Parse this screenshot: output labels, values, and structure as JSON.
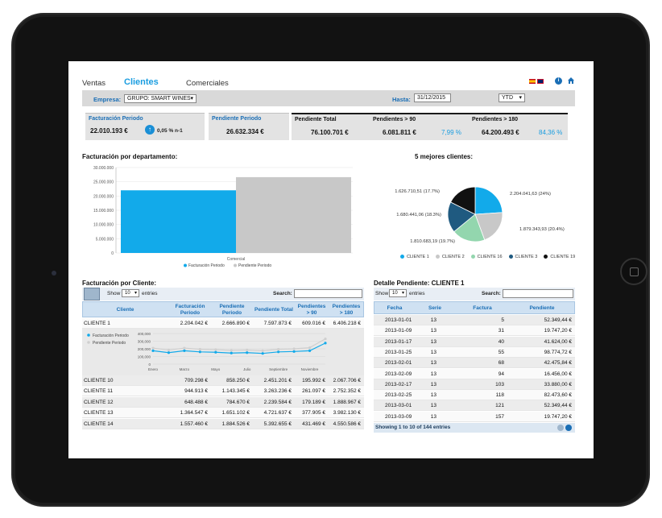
{
  "nav": {
    "ventas": "Ventas",
    "clientes": "Clientes",
    "comerciales": "Comerciales"
  },
  "filters": {
    "empresa_label": "Empresa:",
    "empresa_value": "GRUPO: SMART WINES",
    "hasta_label": "Hasta:",
    "hasta_value": "31/12/2015",
    "period_value": "YTD"
  },
  "kpis": {
    "facturacion": {
      "title": "Facturación Periodo",
      "value": "22.010.193 €",
      "change": "0,05 % n-1"
    },
    "pendiente": {
      "title": "Pendiente Periodo",
      "value": "26.632.334 €"
    },
    "pend_total": {
      "title": "Pendiente Total",
      "value": "76.100.701 €"
    },
    "pend_90": {
      "title": "Pendientes > 90",
      "value": "6.081.811 €",
      "pct": "7,99 %"
    },
    "pend_180": {
      "title": "Pendientes > 180",
      "value": "64.200.493 €",
      "pct": "84,36 %"
    }
  },
  "colors": {
    "accent": "#1a9de0",
    "bar1": "#12aaea",
    "bar2": "#c8c8c8",
    "label_blue": "#1a6eb5"
  },
  "bar_chart": {
    "title": "Facturación por departamento:",
    "chart_data": {
      "type": "bar",
      "categories": [
        "Comercial"
      ],
      "series": [
        {
          "name": "Facturación Periodo",
          "values": [
            22010193
          ]
        },
        {
          "name": "Pendiente Periodo",
          "values": [
            26632334
          ]
        }
      ],
      "ylim": [
        0,
        30000000
      ],
      "yticks": [
        "30.000.000",
        "25.000.000",
        "20.000.000",
        "15.000.000",
        "10.000.000",
        "5.000.000",
        "0"
      ],
      "legend": "bottom"
    }
  },
  "pie_chart": {
    "title": "5 mejores clientes:",
    "chart_data": {
      "type": "pie",
      "slices": [
        {
          "name": "CLIENTE 1",
          "value": 2204041.63,
          "label": "2.204.041,63 (24%)",
          "color": "#12aaea"
        },
        {
          "name": "CLIENTE 2",
          "value": 1879343.93,
          "label": "1.879.343,93 (20.4%)",
          "color": "#c8c8c8"
        },
        {
          "name": "CLIENTE 16",
          "value": 1810683.19,
          "label": "1.810.683,19 (19.7%)",
          "color": "#93d6ae"
        },
        {
          "name": "CLIENTE 3",
          "value": 1680441.06,
          "label": "1.680.441,06 (18.3%)",
          "color": "#1f5a80"
        },
        {
          "name": "CLIENTE 19",
          "value": 1626710.51,
          "label": "1.626.710,51 (17.7%)",
          "color": "#111111"
        }
      ],
      "legend": "bottom"
    }
  },
  "clients_table": {
    "title": "Facturación por Cliente:",
    "show_label": "Show",
    "entries_value": "10",
    "entries_label": "entries",
    "search_label": "Search:",
    "headers": [
      "Cliente",
      "Facturación Periodo",
      "Pendiente Periodo",
      "Pendiente Total",
      "Pendientes > 90",
      "Pendientes > 180"
    ],
    "first_row": [
      "CLIENTE 1",
      "2.204.042 €",
      "2.666.890 €",
      "7.597.873 €",
      "609.016 €",
      "6.406.218 €"
    ],
    "rows": [
      [
        "CLIENTE 10",
        "709.298 €",
        "858.250 €",
        "2.451.201 €",
        "195.992 €",
        "2.067.706 €"
      ],
      [
        "CLIENTE 11",
        "944.913 €",
        "1.143.345 €",
        "3.263.236 €",
        "261.097 €",
        "2.752.352 €"
      ],
      [
        "CLIENTE 12",
        "648.488 €",
        "784.670 €",
        "2.239.584 €",
        "179.189 €",
        "1.888.967 €"
      ],
      [
        "CLIENTE 13",
        "1.364.547 €",
        "1.651.102 €",
        "4.721.637 €",
        "377.905 €",
        "3.982.130 €"
      ],
      [
        "CLIENTE 14",
        "1.557.460 €",
        "1.884.526 €",
        "5.392.655 €",
        "431.469 €",
        "4.550.586 €"
      ]
    ]
  },
  "line_chart": {
    "chart_data": {
      "type": "line",
      "x": [
        "Enero",
        "",
        "Marzo",
        "",
        "Mayo",
        "",
        "Julio",
        "",
        "Septiembre",
        "",
        "Noviembre",
        ""
      ],
      "xticks": [
        "Enero",
        "Marzo",
        "Mayo",
        "Julio",
        "Septiembre",
        "Noviembre"
      ],
      "series": [
        {
          "name": "Facturación Periodo",
          "values": [
            175000,
            150000,
            175000,
            160000,
            155000,
            145000,
            150000,
            140000,
            160000,
            165000,
            175000,
            275000
          ]
        },
        {
          "name": "Pendiente Periodo",
          "values": [
            210000,
            185000,
            210000,
            195000,
            190000,
            180000,
            185000,
            175000,
            195000,
            200000,
            215000,
            330000
          ]
        }
      ],
      "ylim": [
        0,
        400000
      ],
      "yticks": [
        "400,000",
        "300,000",
        "200,000",
        "100,000",
        "0"
      ]
    }
  },
  "detail_table": {
    "title": "Detalle Pendiente: CLIENTE 1",
    "show_label": "Show",
    "entries_value": "10",
    "entries_label": "entries",
    "search_label": "Search:",
    "headers": [
      "Fecha",
      "Serie",
      "Factura",
      "Pendiente"
    ],
    "rows": [
      [
        "2013-01-01",
        "13",
        "5",
        "52.349,44 €"
      ],
      [
        "2013-01-09",
        "13",
        "31",
        "19.747,20 €"
      ],
      [
        "2013-01-17",
        "13",
        "40",
        "41.624,00 €"
      ],
      [
        "2013-01-25",
        "13",
        "55",
        "98.774,72 €"
      ],
      [
        "2013-02-01",
        "13",
        "68",
        "42.475,84 €"
      ],
      [
        "2013-02-09",
        "13",
        "94",
        "16.456,00 €"
      ],
      [
        "2013-02-17",
        "13",
        "103",
        "33.880,00 €"
      ],
      [
        "2013-02-25",
        "13",
        "118",
        "82.473,60 €"
      ],
      [
        "2013-03-01",
        "13",
        "121",
        "52.349,44 €"
      ],
      [
        "2013-03-09",
        "13",
        "157",
        "19.747,20 €"
      ]
    ],
    "footer": "Showing 1 to 10 of 144 entries"
  }
}
